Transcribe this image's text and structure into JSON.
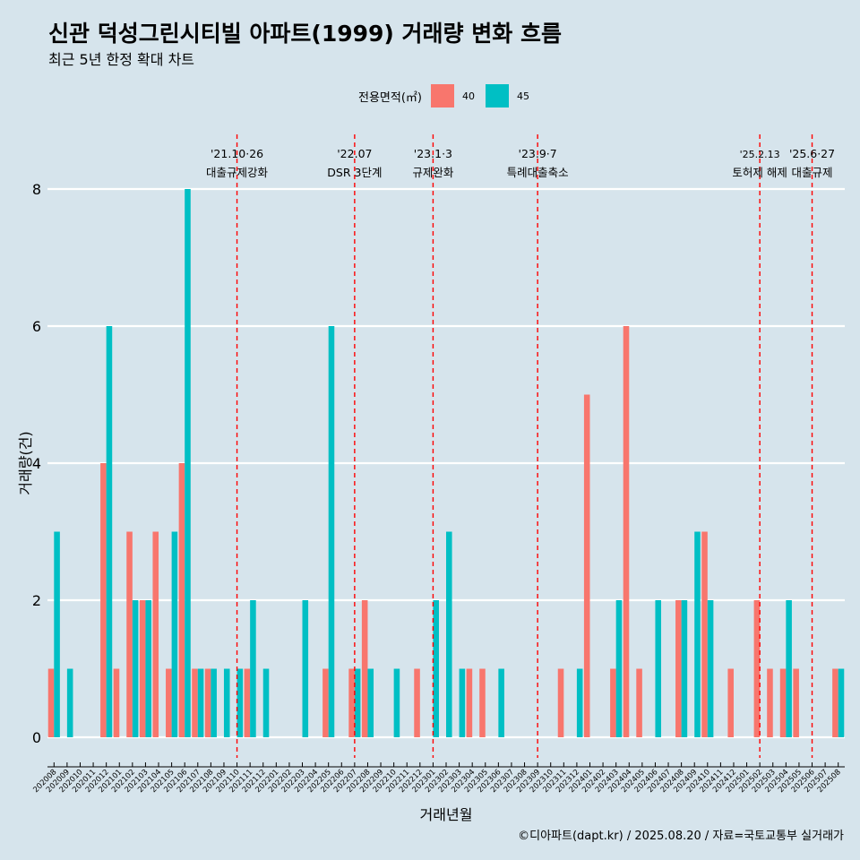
{
  "title": "신관 덕성그린시티빌 아파트(1999) 거래량 변화 흐름",
  "subtitle": "최근 5년 한정 확대 차트",
  "caption": "©디아파트(dapt.kr) / 2025.08.20 / 자료=국토교통부 실거래가",
  "legend": {
    "title": "전용면적(㎡)",
    "items": [
      {
        "label": "40",
        "color": "#F8766D"
      },
      {
        "label": "45",
        "color": "#00BFC4"
      }
    ]
  },
  "chart_data": {
    "type": "bar",
    "xlabel": "거래년월",
    "ylabel": "거래량(건)",
    "ylim": [
      0,
      8
    ],
    "yticks": [
      0,
      2,
      4,
      6,
      8
    ],
    "grid": true,
    "legend_position": "top",
    "categories": [
      "202008",
      "202009",
      "202010",
      "202011",
      "202012",
      "202101",
      "202102",
      "202103",
      "202104",
      "202105",
      "202106",
      "202107",
      "202108",
      "202109",
      "202110",
      "202111",
      "202112",
      "202201",
      "202202",
      "202203",
      "202204",
      "202205",
      "202206",
      "202207",
      "202208",
      "202209",
      "202210",
      "202211",
      "202212",
      "202301",
      "202302",
      "202303",
      "202304",
      "202305",
      "202306",
      "202307",
      "202308",
      "202309",
      "202310",
      "202311",
      "202312",
      "202401",
      "202402",
      "202403",
      "202404",
      "202405",
      "202406",
      "202407",
      "202408",
      "202409",
      "202410",
      "202411",
      "202412",
      "202501",
      "202502",
      "202503",
      "202504",
      "202505",
      "202506",
      "202507",
      "202508"
    ],
    "series": [
      {
        "name": "40",
        "color": "#F8766D",
        "values": [
          1,
          0,
          0,
          0,
          4,
          1,
          3,
          2,
          3,
          1,
          4,
          1,
          1,
          0,
          0,
          1,
          0,
          0,
          0,
          0,
          0,
          1,
          0,
          1,
          2,
          0,
          0,
          0,
          1,
          0,
          0,
          0,
          1,
          1,
          0,
          0,
          0,
          0,
          0,
          1,
          0,
          5,
          0,
          1,
          6,
          1,
          0,
          0,
          2,
          0,
          3,
          0,
          1,
          0,
          2,
          1,
          1,
          1,
          0,
          0,
          1
        ]
      },
      {
        "name": "45",
        "color": "#00BFC4",
        "values": [
          3,
          1,
          0,
          0,
          6,
          0,
          2,
          2,
          0,
          3,
          8,
          1,
          1,
          1,
          1,
          2,
          1,
          0,
          0,
          2,
          0,
          6,
          0,
          1,
          1,
          0,
          1,
          0,
          0,
          2,
          3,
          1,
          0,
          0,
          1,
          0,
          0,
          0,
          0,
          0,
          1,
          0,
          0,
          2,
          0,
          0,
          2,
          0,
          2,
          3,
          2,
          0,
          0,
          0,
          0,
          0,
          2,
          0,
          0,
          0,
          1
        ]
      }
    ],
    "annotations": [
      {
        "x": "202110",
        "date": "'21.10·26",
        "text": "대출규제강화"
      },
      {
        "x": "202207",
        "date": "'22.07",
        "text": "DSR 3단계"
      },
      {
        "x": "202301",
        "date": "'23.1·3",
        "text": "규제완화"
      },
      {
        "x": "202309",
        "date": "'23.9·7",
        "text": "특례대출축소"
      },
      {
        "x": "202502",
        "date": "'25.2.13",
        "text": "토허제 해제"
      },
      {
        "x": "202506",
        "date": "'25.6·27",
        "text": "대출규제"
      }
    ]
  }
}
